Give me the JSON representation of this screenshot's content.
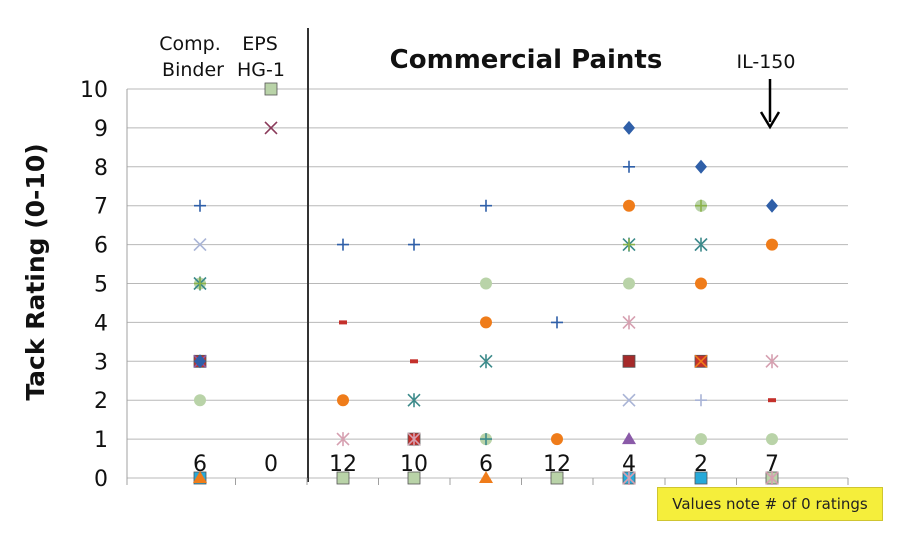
{
  "chart_data": {
    "type": "scatter",
    "title": "Commercial Paints",
    "ylabel": "Tack Rating (0-10)",
    "ylim": [
      0,
      10
    ],
    "yticks": [
      0,
      1,
      2,
      3,
      4,
      5,
      6,
      7,
      8,
      9,
      10
    ],
    "grid": true,
    "group_labels": {
      "comp": [
        "Comp.",
        "Binder"
      ],
      "eps": [
        "EPS",
        "HG-1"
      ]
    },
    "callout": "IL-150",
    "note": "Values note # of 0 ratings",
    "columns": [
      {
        "zero_count": "6",
        "points": [
          {
            "y": 0,
            "marker": "square",
            "color": "#27a9d9"
          },
          {
            "y": 0,
            "marker": "triangle",
            "color": "#ef7c1a"
          },
          {
            "y": 2,
            "marker": "circle",
            "color": "#b9d3a8"
          },
          {
            "y": 3,
            "marker": "square",
            "color": "#c4302b"
          },
          {
            "y": 3,
            "marker": "x",
            "color": "#8a5aa8"
          },
          {
            "y": 3,
            "marker": "diamond",
            "color": "#2f5fa8"
          },
          {
            "y": 5,
            "marker": "circle",
            "color": "#b9d3a8"
          },
          {
            "y": 5,
            "marker": "asterisk",
            "color": "#3c8a8a"
          },
          {
            "y": 5,
            "marker": "plus",
            "color": "#8ab24a"
          },
          {
            "y": 6,
            "marker": "x",
            "color": "#a9b4d6"
          },
          {
            "y": 7,
            "marker": "plus",
            "color": "#2f5fa8"
          }
        ]
      },
      {
        "zero_count": "0",
        "points": [
          {
            "y": 9,
            "marker": "x",
            "color": "#8a3a5a"
          },
          {
            "y": 10,
            "marker": "square",
            "color": "#b9d3a8"
          }
        ]
      },
      {
        "zero_count": "12",
        "points": [
          {
            "y": 0,
            "marker": "square",
            "color": "#b9d3a8"
          },
          {
            "y": 1,
            "marker": "asterisk",
            "color": "#d6a0b0"
          },
          {
            "y": 2,
            "marker": "circle",
            "color": "#ef7c1a"
          },
          {
            "y": 4,
            "marker": "dash",
            "color": "#c4302b"
          },
          {
            "y": 6,
            "marker": "plus",
            "color": "#2f5fa8"
          }
        ]
      },
      {
        "zero_count": "10",
        "points": [
          {
            "y": 0,
            "marker": "square",
            "color": "#b9d3a8"
          },
          {
            "y": 1,
            "marker": "square",
            "color": "#c4302b"
          },
          {
            "y": 1,
            "marker": "asterisk",
            "color": "#d6a0b0"
          },
          {
            "y": 2,
            "marker": "asterisk",
            "color": "#3c8a8a"
          },
          {
            "y": 3,
            "marker": "dash",
            "color": "#c4302b"
          },
          {
            "y": 6,
            "marker": "plus",
            "color": "#2f5fa8"
          }
        ]
      },
      {
        "zero_count": "6",
        "points": [
          {
            "y": 0,
            "marker": "triangle",
            "color": "#ef7c1a"
          },
          {
            "y": 1,
            "marker": "circle",
            "color": "#b9d3a8"
          },
          {
            "y": 1,
            "marker": "plus",
            "color": "#3c8a8a"
          },
          {
            "y": 3,
            "marker": "asterisk",
            "color": "#3c8a8a"
          },
          {
            "y": 4,
            "marker": "circle",
            "color": "#ef7c1a"
          },
          {
            "y": 5,
            "marker": "circle",
            "color": "#b9d3a8"
          },
          {
            "y": 7,
            "marker": "plus",
            "color": "#2f5fa8"
          }
        ]
      },
      {
        "zero_count": "12",
        "points": [
          {
            "y": 0,
            "marker": "square",
            "color": "#b9d3a8"
          },
          {
            "y": 1,
            "marker": "circle",
            "color": "#ef7c1a"
          },
          {
            "y": 4,
            "marker": "plus",
            "color": "#2f5fa8"
          }
        ]
      },
      {
        "zero_count": "4",
        "points": [
          {
            "y": 0,
            "marker": "square",
            "color": "#27a9d9"
          },
          {
            "y": 0,
            "marker": "asterisk",
            "color": "#d6a0b0"
          },
          {
            "y": 1,
            "marker": "triangle",
            "color": "#8a5aa8"
          },
          {
            "y": 2,
            "marker": "x",
            "color": "#a9b4d6"
          },
          {
            "y": 3,
            "marker": "square",
            "color": "#a52a2a"
          },
          {
            "y": 4,
            "marker": "asterisk",
            "color": "#d6a0b0"
          },
          {
            "y": 5,
            "marker": "circle",
            "color": "#b9d3a8"
          },
          {
            "y": 6,
            "marker": "asterisk",
            "color": "#3c8a8a"
          },
          {
            "y": 6,
            "marker": "plus",
            "color": "#8ab24a"
          },
          {
            "y": 7,
            "marker": "circle",
            "color": "#ef7c1a"
          },
          {
            "y": 8,
            "marker": "plus",
            "color": "#2f5fa8"
          },
          {
            "y": 9,
            "marker": "diamond",
            "color": "#2f5fa8"
          }
        ]
      },
      {
        "zero_count": "2",
        "points": [
          {
            "y": 0,
            "marker": "square",
            "color": "#27a9d9"
          },
          {
            "y": 1,
            "marker": "circle",
            "color": "#b9d3a8"
          },
          {
            "y": 2,
            "marker": "plus",
            "color": "#a9b4d6"
          },
          {
            "y": 3,
            "marker": "square",
            "color": "#c4302b"
          },
          {
            "y": 3,
            "marker": "x",
            "color": "#ef7c1a"
          },
          {
            "y": 5,
            "marker": "circle",
            "color": "#ef7c1a"
          },
          {
            "y": 6,
            "marker": "x",
            "color": "#a9b4d6"
          },
          {
            "y": 6,
            "marker": "asterisk",
            "color": "#3c8a8a"
          },
          {
            "y": 7,
            "marker": "circle",
            "color": "#b9d3a8"
          },
          {
            "y": 7,
            "marker": "plus",
            "color": "#8ab24a"
          },
          {
            "y": 8,
            "marker": "diamond",
            "color": "#2f5fa8"
          }
        ]
      },
      {
        "zero_count": "7",
        "points": [
          {
            "y": 0,
            "marker": "square",
            "color": "#b9d3a8"
          },
          {
            "y": 0,
            "marker": "asterisk",
            "color": "#d6a0b0"
          },
          {
            "y": 1,
            "marker": "circle",
            "color": "#b9d3a8"
          },
          {
            "y": 2,
            "marker": "dash",
            "color": "#c4302b"
          },
          {
            "y": 3,
            "marker": "asterisk",
            "color": "#d6a0b0"
          },
          {
            "y": 6,
            "marker": "circle",
            "color": "#ef7c1a"
          },
          {
            "y": 7,
            "marker": "diamond",
            "color": "#2f5fa8"
          }
        ]
      }
    ]
  }
}
